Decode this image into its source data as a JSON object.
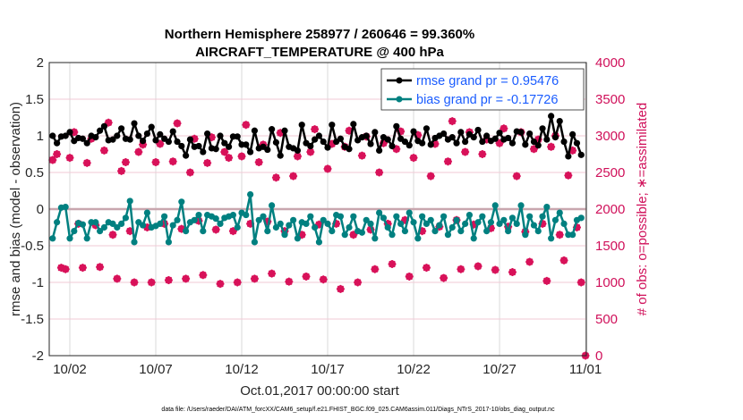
{
  "chart_data": {
    "type": "line",
    "title": [
      "Northern Hemisphere 258977 / 260646 = 99.360%",
      "AIRCRAFT_TEMPERATURE @ 400 hPa"
    ],
    "xlabel": "Oct.01,2017 00:00:00 start",
    "ylabel": "rmse and bias (model - observation)",
    "ylabel_right": "# of obs: o=possible; ∗=assimilated",
    "ylim": [
      -2,
      2
    ],
    "ylim_right": [
      0,
      4000
    ],
    "xlim_days": [
      -0.198,
      31.05
    ],
    "x_step_days": 0.25,
    "yticks": [
      "-2",
      "-1.5",
      "-1",
      "-0.5",
      "0",
      "0.5",
      "1",
      "1.5",
      "2"
    ],
    "yticks_right": [
      "0",
      "500",
      "1000",
      "1500",
      "2000",
      "2500",
      "3000",
      "3500",
      "4000"
    ],
    "xticks": [
      {
        "day": 1,
        "label": "10/02"
      },
      {
        "day": 6,
        "label": "10/07"
      },
      {
        "day": 11,
        "label": "10/12"
      },
      {
        "day": 16,
        "label": "10/17"
      },
      {
        "day": 21,
        "label": "10/22"
      },
      {
        "day": 26,
        "label": "10/27"
      },
      {
        "day": 31,
        "label": "11/01"
      }
    ],
    "grid": true,
    "legend_position": "top-right",
    "colors": {
      "rmse": "#000000",
      "bias": "#008080",
      "obs": "#d81159",
      "legend_text": "#1a5cff"
    },
    "series": [
      {
        "name": "rmse grand pr = 0.95476",
        "values": [
          1.0,
          0.9,
          0.99,
          1.0,
          1.05,
          0.93,
          0.97,
          0.96,
          0.9,
          1.0,
          0.98,
          1.07,
          1.13,
          0.94,
          0.95,
          1.0,
          1.1,
          0.96,
          0.95,
          1.17,
          1.0,
          0.93,
          1.03,
          1.12,
          0.94,
          1.02,
          0.96,
          0.92,
          1.06,
          0.92,
          0.86,
          0.73,
          0.95,
          0.85,
          0.86,
          0.78,
          1.03,
          0.83,
          0.82,
          1.0,
          0.9,
          0.85,
          0.99,
          0.99,
          0.88,
          0.88,
          0.78,
          1.07,
          0.83,
          0.85,
          0.81,
          1.09,
          0.91,
          0.73,
          1.07,
          0.85,
          0.83,
          0.8,
          1.15,
          0.9,
          0.86,
          0.95,
          1.0,
          0.92,
          0.84,
          1.15,
          0.92,
          0.96,
          0.85,
          0.82,
          1.16,
          0.94,
          0.98,
          1.0,
          0.89,
          1.05,
          0.8,
          0.98,
          0.95,
          0.86,
          1.13,
          0.96,
          0.92,
          0.87,
          1.06,
          0.93,
          0.9,
          1.1,
          0.88,
          0.97,
          1.0,
          1.03,
          0.95,
          0.98,
          0.9,
          1.05,
          0.92,
          1.02,
          0.98,
          1.08,
          0.92,
          1.0,
          0.93,
          0.96,
          1.04,
          0.95,
          0.97,
          0.9,
          1.06,
          1.05,
          0.88,
          1.03,
          0.92,
          0.87,
          1.1,
          0.95,
          1.27,
          0.98,
          1.2,
          0.92,
          0.72,
          1.02,
          0.9,
          0.74
        ]
      },
      {
        "name": "bias grand pr = -0.17726",
        "values": [
          -0.4,
          -0.18,
          0.02,
          0.03,
          -0.4,
          -0.3,
          -0.19,
          -0.21,
          -0.4,
          -0.18,
          -0.18,
          -0.3,
          -0.25,
          -0.18,
          -0.2,
          -0.25,
          -0.2,
          -0.12,
          0.11,
          -0.45,
          -0.18,
          -0.22,
          -0.05,
          -0.25,
          -0.23,
          -0.2,
          -0.1,
          -0.45,
          -0.22,
          -0.15,
          0.1,
          -0.3,
          -0.18,
          -0.15,
          -0.08,
          -0.3,
          -0.08,
          -0.1,
          -0.13,
          -0.2,
          -0.12,
          -0.1,
          -0.08,
          -0.25,
          -0.05,
          -0.08,
          0.2,
          -0.45,
          -0.15,
          -0.1,
          -0.3,
          0.05,
          -0.25,
          -0.2,
          -0.35,
          -0.22,
          -0.15,
          -0.4,
          -0.18,
          -0.2,
          -0.1,
          -0.25,
          -0.45,
          -0.15,
          -0.2,
          -0.3,
          -0.08,
          -0.1,
          -0.35,
          -0.25,
          -0.1,
          -0.3,
          -0.32,
          -0.15,
          -0.2,
          -0.4,
          -0.05,
          -0.12,
          -0.25,
          -0.35,
          -0.1,
          -0.2,
          -0.3,
          -0.05,
          -0.18,
          -0.4,
          -0.1,
          -0.2,
          -0.15,
          -0.3,
          -0.22,
          -0.1,
          -0.35,
          -0.25,
          -0.15,
          -0.3,
          -0.2,
          -0.08,
          -0.4,
          -0.18,
          -0.1,
          -0.3,
          -0.18,
          0.05,
          -0.2,
          -0.15,
          -0.3,
          -0.12,
          -0.2,
          0.05,
          -0.35,
          -0.1,
          -0.22,
          -0.3,
          -0.1,
          0.03,
          -0.4,
          -0.15,
          -0.05,
          -0.2,
          -0.35,
          -0.35,
          -0.15,
          -0.12
        ]
      },
      {
        "name": "obs possible",
        "values": [
          2670,
          2750,
          1200,
          1180,
          2700,
          3050,
          1800,
          1200,
          2630,
          2960,
          1780,
          1210,
          2800,
          3180,
          1650,
          1050,
          2520,
          2640,
          1700,
          1000,
          2780,
          2880,
          1750,
          1000,
          2640,
          2890,
          1800,
          1030,
          2650,
          3170,
          1730,
          1050,
          2500,
          2960,
          1840,
          1100,
          2630,
          2980,
          1720,
          980,
          2780,
          2700,
          1700,
          1000,
          2720,
          3150,
          1800,
          1050,
          2640,
          2880,
          1830,
          1120,
          2430,
          3040,
          1700,
          1010,
          2450,
          2720,
          1650,
          1080,
          2780,
          3090,
          1790,
          1040,
          2550,
          2890,
          1800,
          910,
          2850,
          3070,
          1650,
          1000,
          2730,
          2990,
          1720,
          1180,
          2500,
          2900,
          1800,
          1250,
          2820,
          3060,
          1850,
          1080,
          2700,
          3010,
          1700,
          1200,
          2450,
          2890,
          1760,
          1060,
          2650,
          3200,
          1850,
          1180,
          2780,
          3050,
          1790,
          1220,
          2750,
          2950,
          1740,
          1170,
          2900,
          3100,
          1760,
          1140,
          2450,
          3050,
          1690,
          1280,
          2820,
          2950,
          1800,
          1020,
          2850,
          3000,
          1650,
          1300,
          2460,
          2800,
          1750,
          1000,
          0
        ]
      },
      {
        "name": "obs assimilated",
        "values": [
          2670,
          2750,
          1200,
          1180,
          2700,
          3050,
          1800,
          1200,
          2630,
          2960,
          1780,
          1210,
          2800,
          3180,
          1650,
          1050,
          2520,
          2640,
          1700,
          1000,
          2780,
          2880,
          1750,
          1000,
          2640,
          2890,
          1800,
          1030,
          2650,
          3170,
          1730,
          1050,
          2500,
          2960,
          1840,
          1100,
          2630,
          2980,
          1720,
          980,
          2780,
          2700,
          1700,
          1000,
          2720,
          3150,
          1800,
          1050,
          2640,
          2880,
          1830,
          1120,
          2430,
          3040,
          1700,
          1010,
          2450,
          2720,
          1650,
          1080,
          2780,
          3090,
          1790,
          1040,
          2550,
          2890,
          1800,
          910,
          2850,
          3070,
          1650,
          1000,
          2730,
          2990,
          1720,
          1180,
          2500,
          2900,
          1800,
          1250,
          2820,
          3060,
          1850,
          1080,
          2700,
          3010,
          1700,
          1200,
          2450,
          2890,
          1760,
          1060,
          2650,
          3200,
          1850,
          1180,
          2780,
          3050,
          1790,
          1220,
          2750,
          2950,
          1740,
          1170,
          2900,
          3100,
          1760,
          1140,
          2450,
          3050,
          1690,
          1280,
          2820,
          2950,
          1800,
          1020,
          2850,
          3000,
          1650,
          1300,
          2460,
          2800,
          1750,
          1000,
          0
        ]
      }
    ]
  },
  "footnote": "data file: /Users/raeder/DAI/ATM_forcXX/CAM6_setup/f.e21.FHIST_BGC.f09_025.CAM6assim.011/Diags_NTrS_2017-10/obs_diag_output.nc"
}
